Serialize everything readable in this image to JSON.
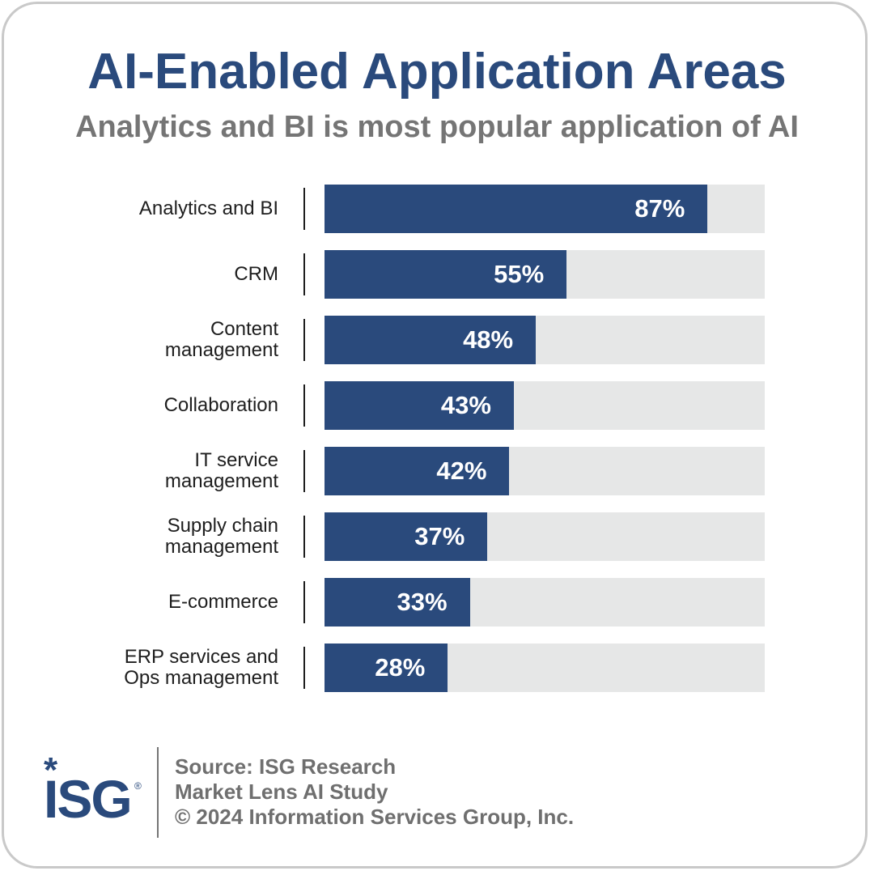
{
  "chart_data": {
    "type": "bar",
    "orientation": "horizontal",
    "title": "AI-Enabled Application Areas",
    "subtitle": "Analytics and BI is most popular application of AI",
    "categories": [
      [
        "Analytics and BI"
      ],
      [
        "CRM"
      ],
      [
        "Content",
        "management"
      ],
      [
        "Collaboration"
      ],
      [
        "IT service",
        "management"
      ],
      [
        "Supply chain",
        "management"
      ],
      [
        "E-commerce"
      ],
      [
        "ERP services and",
        "Ops management"
      ]
    ],
    "values": [
      87,
      55,
      48,
      43,
      42,
      37,
      33,
      28
    ],
    "value_labels": [
      "87%",
      "55%",
      "48%",
      "43%",
      "42%",
      "37%",
      "33%",
      "28%"
    ],
    "xlim": [
      0,
      100
    ],
    "unit": "%",
    "grid": false,
    "colors": {
      "bar": "#2a4a7c",
      "track": "#e6e7e7",
      "title": "#2a4a7c",
      "subtitle": "#757575"
    }
  },
  "footer": {
    "logo_text": "ISG",
    "logo_star": "*",
    "logo_registered": "®",
    "source_lines": [
      "Source: ISG Research",
      "Market Lens AI Study",
      "© 2024 Information Services Group, Inc."
    ]
  }
}
